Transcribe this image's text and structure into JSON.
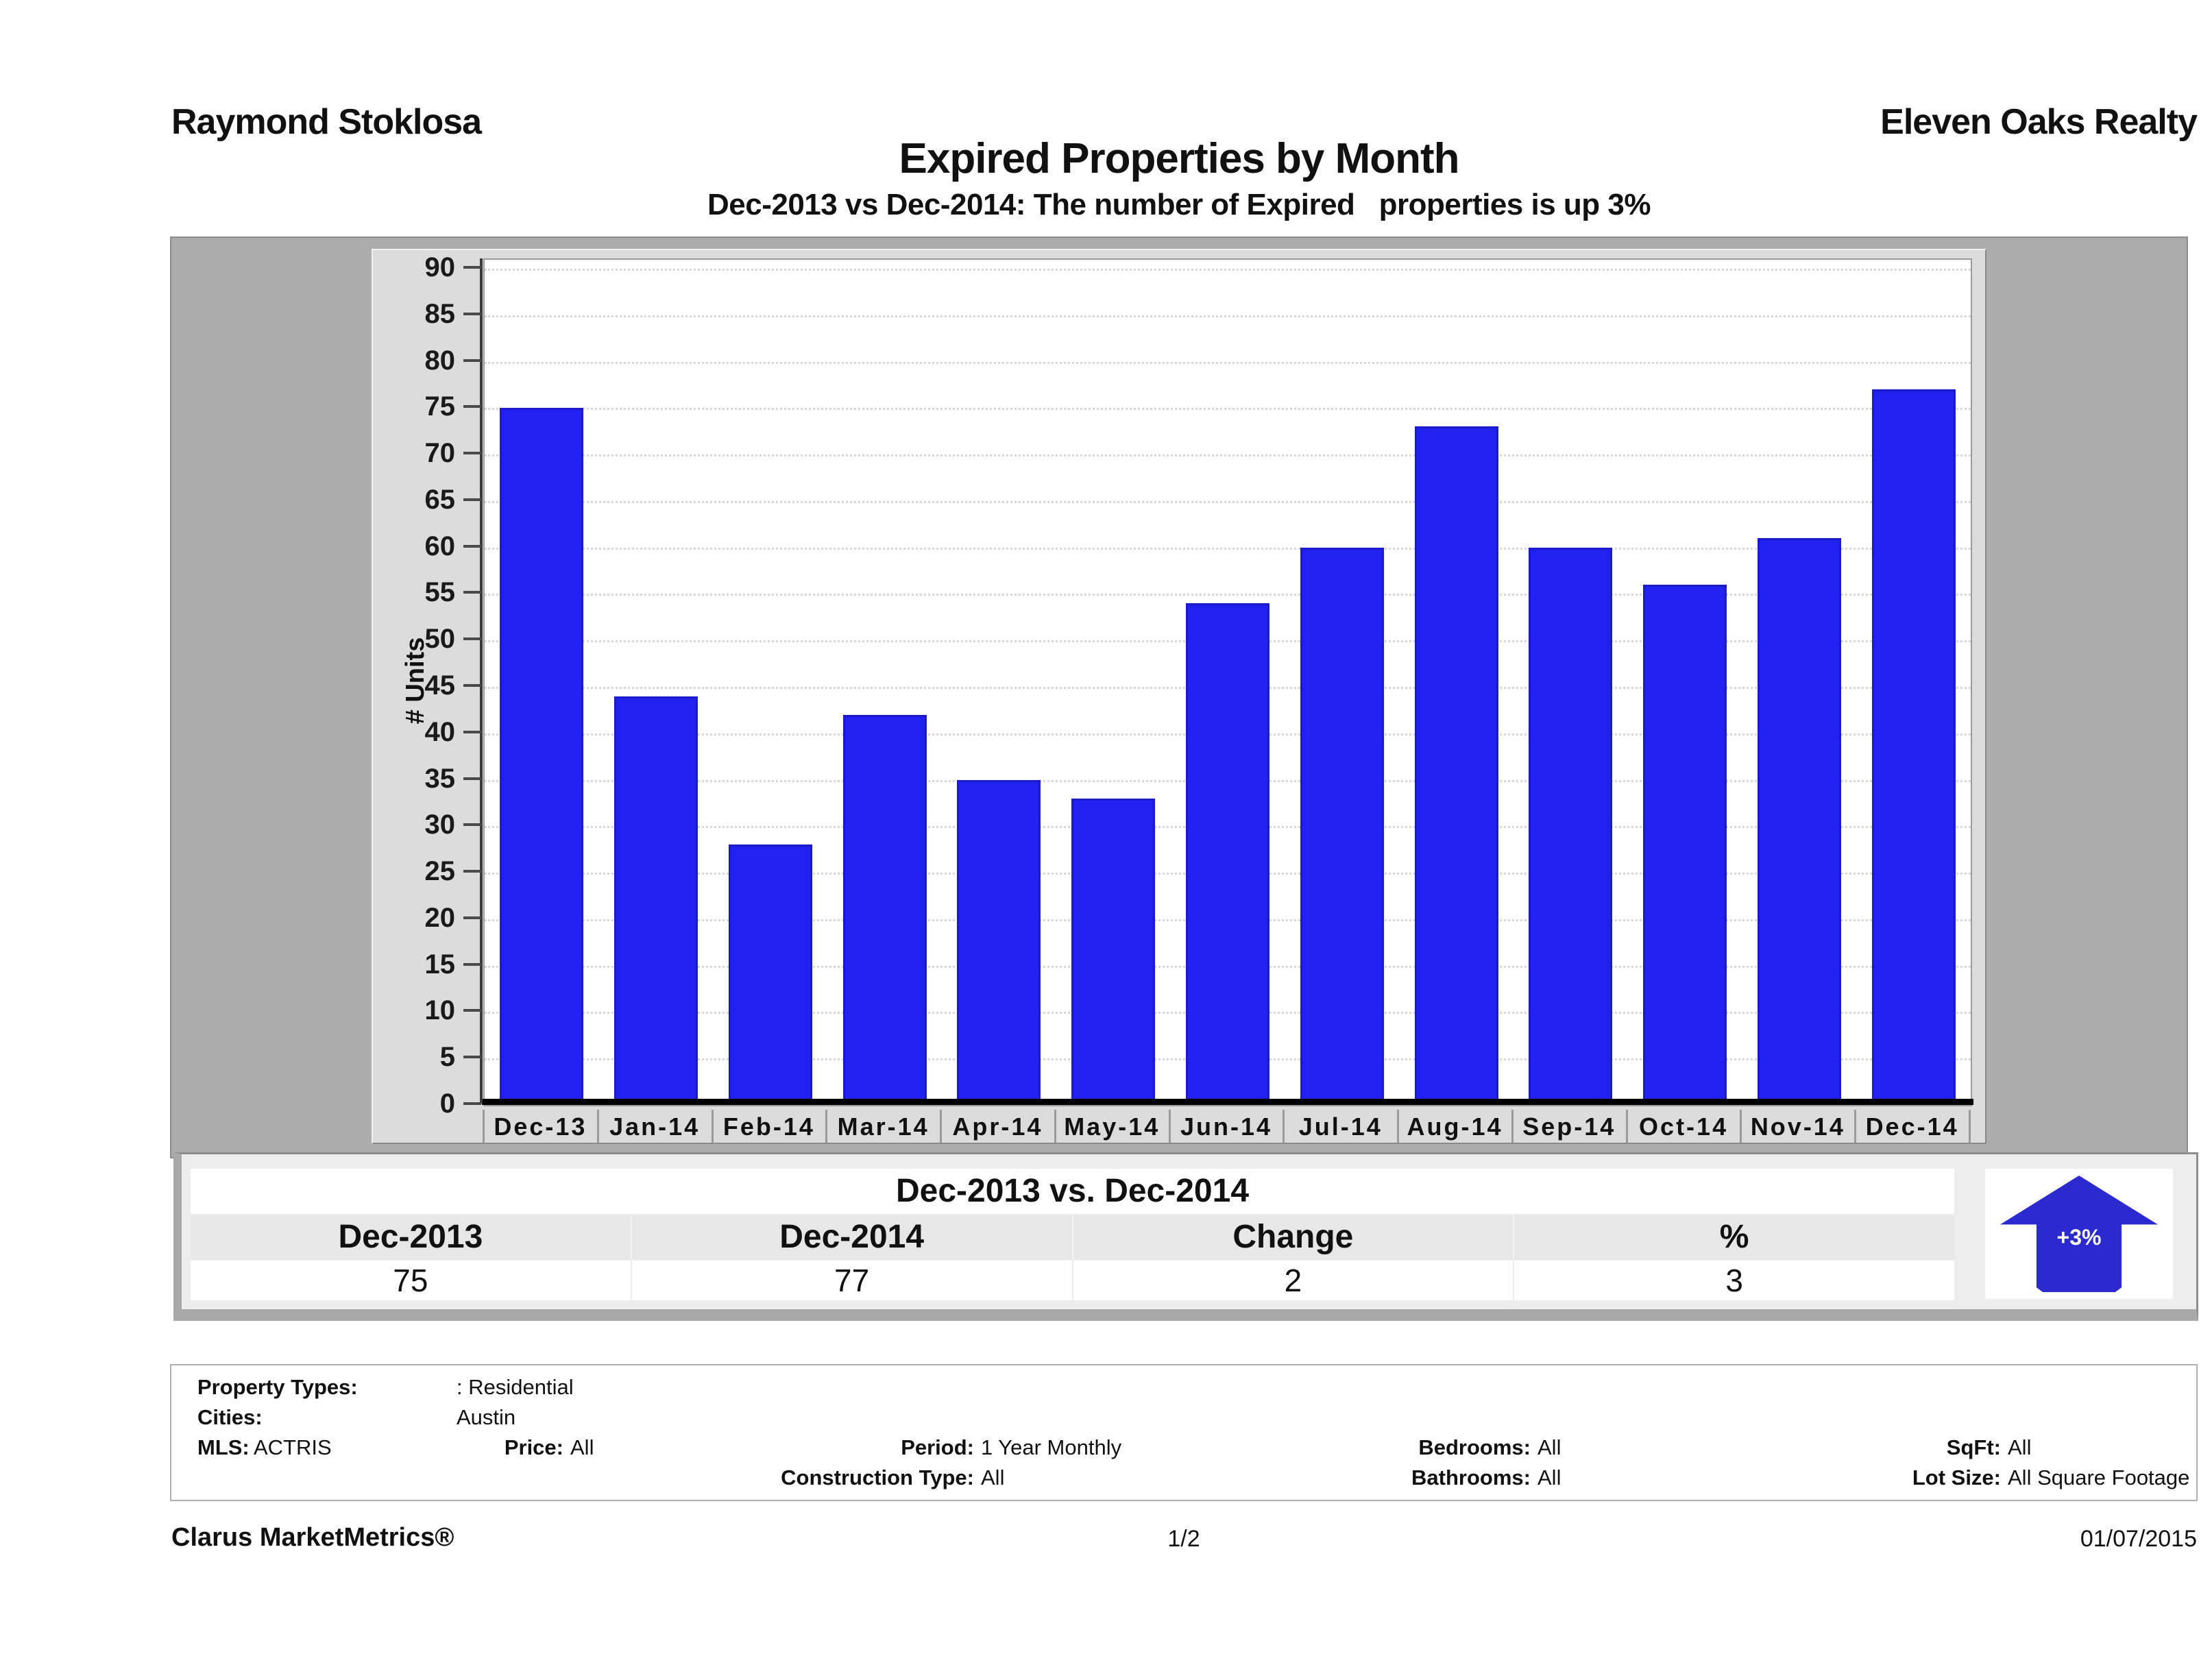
{
  "header": {
    "agent_name": "Raymond Stoklosa",
    "company_name": "Eleven Oaks Realty",
    "report_title": "Expired Properties by Month",
    "report_subtitle": "Dec-2013 vs Dec-2014: The number of Expired   properties is up 3%"
  },
  "chart_data": {
    "type": "bar",
    "title": "Expired Properties by Month",
    "xlabel": "",
    "ylabel": "# Units",
    "ylim": [
      0,
      90
    ],
    "ytick_step": 5,
    "grid": "horizontal-dotted",
    "legend_position": "none",
    "bar_color": "#2222f0",
    "categories": [
      "Dec-13",
      "Jan-14",
      "Feb-14",
      "Mar-14",
      "Apr-14",
      "May-14",
      "Jun-14",
      "Jul-14",
      "Aug-14",
      "Sep-14",
      "Oct-14",
      "Nov-14",
      "Dec-14"
    ],
    "values": [
      75,
      44,
      28,
      42,
      35,
      33,
      54,
      60,
      73,
      60,
      56,
      61,
      77
    ]
  },
  "summary": {
    "title": "Dec-2013 vs. Dec-2014",
    "columns": [
      "Dec-2013",
      "Dec-2014",
      "Change",
      "%"
    ],
    "values": [
      "75",
      "77",
      "2",
      "3"
    ],
    "arrow": {
      "label": "+3%",
      "direction": "up",
      "color": "#2a2ace"
    }
  },
  "criteria": {
    "property_types": {
      "label": "Property Types:",
      "value": ": Residential"
    },
    "cities": {
      "label": "Cities:",
      "value": "Austin"
    },
    "mls": {
      "label": "MLS:",
      "value": "ACTRIS"
    },
    "price": {
      "label": "Price:",
      "value": "All"
    },
    "period": {
      "label": "Period:",
      "value": "1 Year Monthly"
    },
    "bedrooms": {
      "label": "Bedrooms:",
      "value": "All"
    },
    "sqft": {
      "label": "SqFt:",
      "value": "All"
    },
    "construction_type": {
      "label": "Construction Type:",
      "value": "All"
    },
    "bathrooms": {
      "label": "Bathrooms:",
      "value": "All"
    },
    "lot_size": {
      "label": "Lot Size:",
      "value": "All Square Footage"
    }
  },
  "footer": {
    "brand": "Clarus MarketMetrics®",
    "page": "1/2",
    "date": "01/07/2015"
  }
}
